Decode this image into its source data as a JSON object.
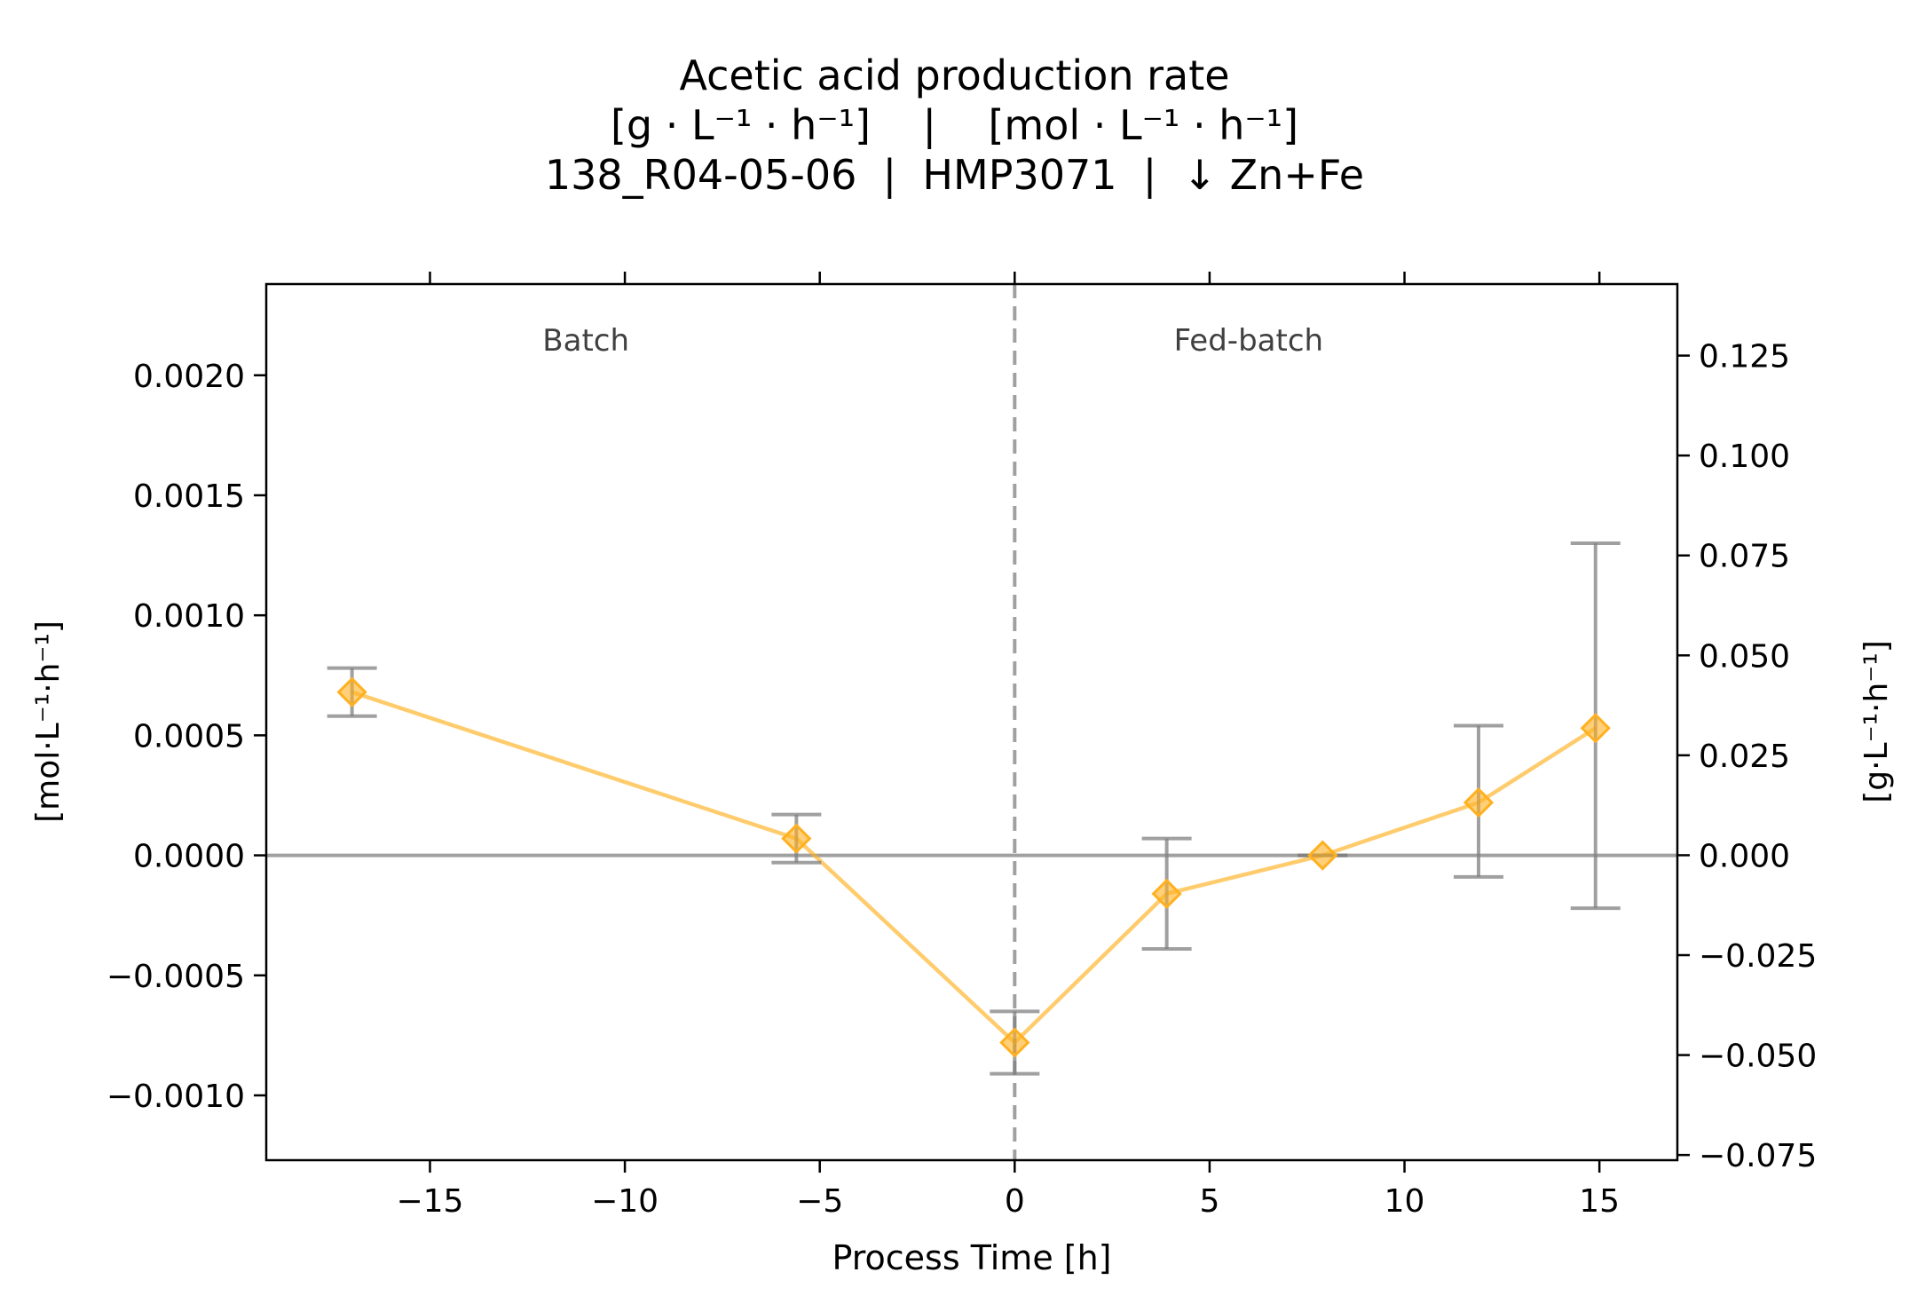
{
  "chart_data": {
    "type": "line",
    "title_lines": [
      "Acetic acid production rate",
      "[g · L⁻¹ · h⁻¹]    |    [mol · L⁻¹ · h⁻¹]",
      "138_R04-05-06  |  HMP3071  |  ↓ Zn+Fe"
    ],
    "xlabel": "Process Time [h]",
    "ylabel_left": "[mol·L⁻¹·h⁻¹]",
    "ylabel_right": "[g·L⁻¹·h⁻¹]",
    "xlim": [
      -19.2,
      17
    ],
    "ylim_left": [
      -0.00127,
      0.00238
    ],
    "ylim_right": [
      -0.0763,
      0.1429
    ],
    "x_ticks": [
      {
        "value": -15,
        "label": "−15"
      },
      {
        "value": -10,
        "label": "−10"
      },
      {
        "value": -5,
        "label": "−5"
      },
      {
        "value": 0,
        "label": "0"
      },
      {
        "value": 5,
        "label": "5"
      },
      {
        "value": 10,
        "label": "10"
      },
      {
        "value": 15,
        "label": "15"
      }
    ],
    "y_left_ticks": [
      {
        "value": -0.001,
        "label": "−0.0010"
      },
      {
        "value": -0.0005,
        "label": "−0.0005"
      },
      {
        "value": 0.0,
        "label": "0.0000"
      },
      {
        "value": 0.0005,
        "label": "0.0005"
      },
      {
        "value": 0.001,
        "label": "0.0010"
      },
      {
        "value": 0.0015,
        "label": "0.0015"
      },
      {
        "value": 0.002,
        "label": "0.0020"
      }
    ],
    "y_right_ticks": [
      {
        "value": -0.075,
        "label": "−0.075"
      },
      {
        "value": -0.05,
        "label": "−0.050"
      },
      {
        "value": -0.025,
        "label": "−0.025"
      },
      {
        "value": 0.0,
        "label": "0.000"
      },
      {
        "value": 0.025,
        "label": "0.025"
      },
      {
        "value": 0.05,
        "label": "0.050"
      },
      {
        "value": 0.075,
        "label": "0.075"
      },
      {
        "value": 0.1,
        "label": "0.100"
      },
      {
        "value": 0.125,
        "label": "0.125"
      }
    ],
    "phase_divider_x": 0,
    "phase_labels": [
      {
        "text": "Batch",
        "x": -11
      },
      {
        "text": "Fed-batch",
        "x": 6
      }
    ],
    "series": [
      {
        "color": "#ffb01f",
        "marker": "diamond",
        "points": [
          {
            "x": -17.0,
            "y": 0.00068,
            "err_low": 0.00058,
            "err_high": 0.00078
          },
          {
            "x": -5.6,
            "y": 7e-05,
            "err_low": -3e-05,
            "err_high": 0.00017
          },
          {
            "x": 0.0,
            "y": -0.00078,
            "err_low": -0.00091,
            "err_high": -0.00065
          },
          {
            "x": 3.9,
            "y": -0.00016,
            "err_low": -0.00039,
            "err_high": 7e-05
          },
          {
            "x": 7.9,
            "y": 0.0,
            "err_low": 0.0,
            "err_high": 0.0
          },
          {
            "x": 11.9,
            "y": 0.00022,
            "err_low": -9e-05,
            "err_high": 0.00054
          },
          {
            "x": 14.9,
            "y": 0.00053,
            "err_low": -0.00022,
            "err_high": 0.0013
          }
        ]
      }
    ],
    "zero_line": true,
    "grid": false,
    "colors": {
      "errorbar": "#808080",
      "zero_line": "#a0a0a0",
      "divider": "#a0a0a0",
      "phase_label": "#404040"
    }
  }
}
